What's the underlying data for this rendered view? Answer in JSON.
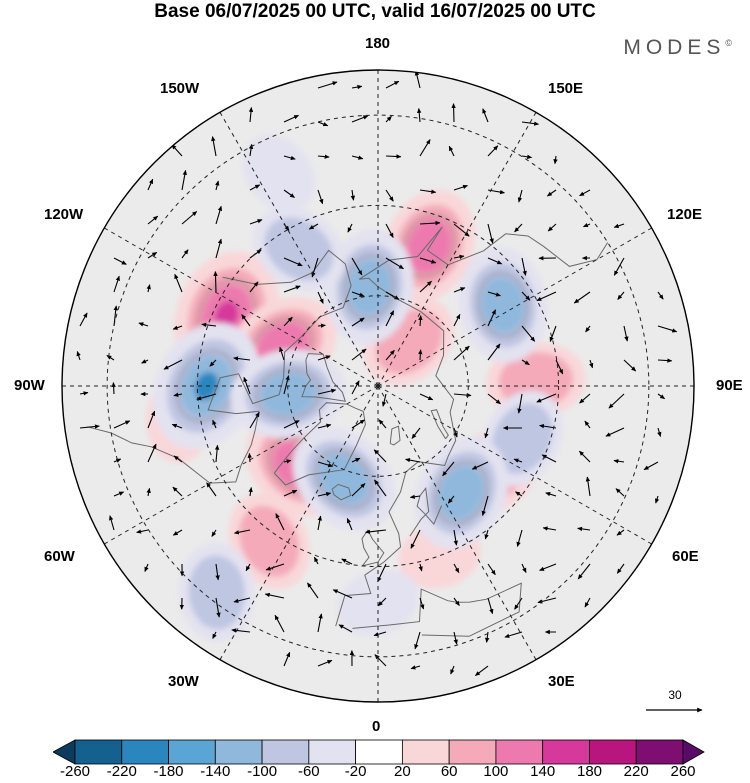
{
  "title": "Base 06/07/2025 00 UTC, valid 16/07/2025 00 UTC",
  "brand": "MODES",
  "brand_mark": "©",
  "longitude_labels": {
    "lon_180": "180",
    "lon_150w": "150W",
    "lon_150e": "150E",
    "lon_120w": "120W",
    "lon_120e": "120E",
    "lon_90w": "90W",
    "lon_90e": "90E",
    "lon_60w": "60W",
    "lon_60e": "60E",
    "lon_30w": "30W",
    "lon_30e": "30E",
    "lon_0": "0"
  },
  "vector_reference": "30",
  "colorbar": {
    "labels": [
      "-260",
      "-220",
      "-180",
      "-140",
      "-100",
      "-60",
      "-20",
      "20",
      "60",
      "100",
      "140",
      "180",
      "220",
      "260"
    ],
    "colors": [
      "#0d3b5e",
      "#14608f",
      "#2b86bf",
      "#5aa5d3",
      "#8fb8dc",
      "#bfc6e2",
      "#e3e2f0",
      "#ffffff",
      "#f9d7d9",
      "#f4aab9",
      "#ec7aae",
      "#d6389c",
      "#b8157e",
      "#7e0e71",
      "#5a0b68"
    ]
  },
  "map_style": {
    "background": "#ebebeb",
    "positive_colors": [
      "#f9d7d9",
      "#f4aab9",
      "#ec7aae",
      "#d6389c"
    ],
    "negative_colors": [
      "#e3e2f0",
      "#bfc6e2",
      "#8fb8dc",
      "#2b86bf"
    ],
    "coastline": "#6a6a6a",
    "grid": "#222222"
  },
  "anomaly_centers": [
    {
      "lon": -115,
      "lat": 53,
      "sign": 1,
      "strength": 4
    },
    {
      "lon": 160,
      "lat": 57,
      "sign": 1,
      "strength": 3
    },
    {
      "lon": -113,
      "lat": 67,
      "sign": 1,
      "strength": 3
    },
    {
      "lon": 145,
      "lat": 78,
      "sign": 1,
      "strength": 2
    },
    {
      "lon": -45,
      "lat": 65,
      "sign": 1,
      "strength": 3
    },
    {
      "lon": -35,
      "lat": 48,
      "sign": 1,
      "strength": 2
    },
    {
      "lon": 55,
      "lat": 58,
      "sign": 1,
      "strength": 2
    },
    {
      "lon": 92,
      "lat": 55,
      "sign": 1,
      "strength": 2
    },
    {
      "lon": -80,
      "lat": 45,
      "sign": 1,
      "strength": 1
    },
    {
      "lon": 20,
      "lat": 50,
      "sign": 1,
      "strength": 1
    },
    {
      "lon": -90,
      "lat": 52,
      "sign": -1,
      "strength": 4
    },
    {
      "lon": 123,
      "lat": 57,
      "sign": -1,
      "strength": 3
    },
    {
      "lon": -175,
      "lat": 68,
      "sign": -1,
      "strength": 3
    },
    {
      "lon": -85,
      "lat": 70,
      "sign": -1,
      "strength": 3
    },
    {
      "lon": -20,
      "lat": 68,
      "sign": -1,
      "strength": 3
    },
    {
      "lon": 70,
      "lat": 56,
      "sign": -1,
      "strength": 2
    },
    {
      "lon": 38,
      "lat": 60,
      "sign": -1,
      "strength": 3
    },
    {
      "lon": -38,
      "lat": 32,
      "sign": -1,
      "strength": 2
    },
    {
      "lon": -150,
      "lat": 55,
      "sign": -1,
      "strength": 2
    },
    {
      "lon": -155,
      "lat": 38,
      "sign": -1,
      "strength": 1
    },
    {
      "lon": 0,
      "lat": 42,
      "sign": -1,
      "strength": 1
    }
  ]
}
